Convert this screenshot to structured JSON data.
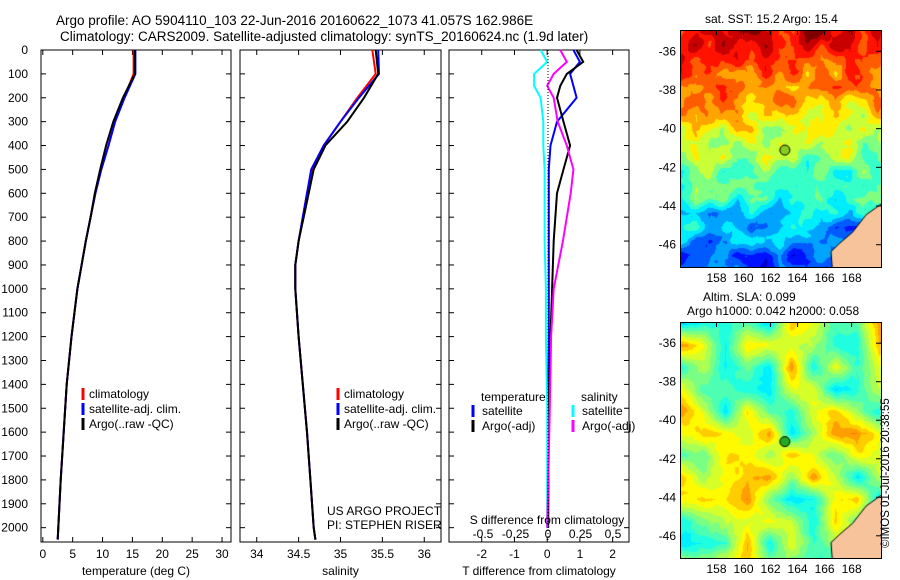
{
  "title": {
    "line1": "Argo profile: AO 5904110_103 22-Jun-2016 20160622_1073 41.057S 162.986E",
    "line2": "Climatology: CARS2009. Satellite-adjusted climatology: synTS_20160624.nc (1.9d later)"
  },
  "colors": {
    "climatology": "#ff0000",
    "satellite": "#0000ff",
    "argo": "#000000",
    "sal_satellite": "#00ffff",
    "sal_argo": "#ff00ff"
  },
  "chart_data": [
    {
      "type": "line",
      "name": "temperature",
      "xlabel": "temperature (deg C)",
      "ylabel": "",
      "xlim": [
        -0.3,
        31.5
      ],
      "ylim": [
        2060,
        0
      ],
      "xticks": [
        "0",
        "5",
        "10",
        "15",
        "20",
        "25",
        "30"
      ],
      "xtickvals": [
        0,
        5,
        10,
        15,
        20,
        25,
        30
      ],
      "yticks": [
        "0",
        "100",
        "200",
        "300",
        "400",
        "500",
        "600",
        "700",
        "800",
        "900",
        "1000",
        "1100",
        "1200",
        "1300",
        "1400",
        "1500",
        "1600",
        "1700",
        "1800",
        "1900",
        "2000"
      ],
      "depth": [
        0,
        100,
        200,
        300,
        400,
        500,
        600,
        700,
        800,
        900,
        1000,
        1200,
        1400,
        1600,
        1800,
        2000,
        2050
      ],
      "series": [
        {
          "name": "climatology",
          "values": [
            15.2,
            15.2,
            13.6,
            12.1,
            11.0,
            9.8,
            8.8,
            8.0,
            7.2,
            6.5,
            5.8,
            4.8,
            4.0,
            3.5,
            3.0,
            2.6,
            2.5
          ]
        },
        {
          "name": "satellite-adj. clim.",
          "values": [
            15.5,
            15.5,
            13.7,
            12.1,
            11.0,
            9.8,
            8.8,
            8.0,
            7.2,
            6.5,
            5.8,
            4.8,
            4.0,
            3.5,
            3.0,
            2.6,
            2.5
          ]
        },
        {
          "name": "Argo(..raw -QC)",
          "values": [
            15.4,
            15.4,
            13.4,
            11.8,
            10.6,
            9.6,
            8.7,
            8.0,
            7.2,
            6.5,
            5.8,
            4.8,
            4.0,
            3.5,
            3.0,
            2.6,
            2.5
          ]
        }
      ],
      "legend": [
        "climatology",
        "satellite-adj. clim.",
        "Argo(..raw -QC)"
      ],
      "legend_position": "bottom-right"
    },
    {
      "type": "line",
      "name": "salinity",
      "xlabel": "salinity",
      "xlim": [
        33.8,
        36.2
      ],
      "ylim": [
        2060,
        0
      ],
      "xticks": [
        "34",
        "34.5",
        "35",
        "35.5",
        "36"
      ],
      "xtickvals": [
        34,
        34.5,
        35,
        35.5,
        36
      ],
      "depth": [
        0,
        100,
        200,
        300,
        400,
        500,
        600,
        700,
        800,
        900,
        1000,
        1200,
        1400,
        1600,
        1800,
        2000,
        2050
      ],
      "series": [
        {
          "name": "climatology",
          "values": [
            35.38,
            35.42,
            35.2,
            35.0,
            34.8,
            34.66,
            34.6,
            34.55,
            34.5,
            34.46,
            34.46,
            34.5,
            34.55,
            34.6,
            34.64,
            34.68,
            34.7
          ]
        },
        {
          "name": "satellite-adj. clim.",
          "values": [
            35.45,
            35.46,
            35.22,
            35.0,
            34.8,
            34.65,
            34.6,
            34.55,
            34.5,
            34.46,
            34.46,
            34.5,
            34.55,
            34.6,
            34.64,
            34.68,
            34.7
          ]
        },
        {
          "name": "Argo(..raw -QC)",
          "values": [
            35.42,
            35.45,
            35.28,
            35.08,
            34.82,
            34.68,
            34.62,
            34.56,
            34.5,
            34.46,
            34.46,
            34.5,
            34.55,
            34.6,
            34.64,
            34.68,
            34.7
          ]
        }
      ],
      "legend": [
        "climatology",
        "satellite-adj. clim.",
        "Argo(..raw -QC)"
      ],
      "annotation": [
        "US ARGO PROJECT",
        "PI: STEPHEN RISER"
      ]
    },
    {
      "type": "line",
      "name": "difference",
      "xlabel": "T difference from climatology",
      "x2label": "S difference from climatology",
      "xlim": [
        -3,
        2.5
      ],
      "ylim": [
        2060,
        0
      ],
      "xticks": [
        "-2",
        "-1",
        "0",
        "1",
        "2"
      ],
      "xtickvals": [
        -2,
        -1,
        0,
        1,
        2
      ],
      "x2ticks": [
        "-0.5",
        "-0.25",
        "0",
        "0.25",
        "0.5"
      ],
      "depth": [
        0,
        50,
        100,
        150,
        200,
        300,
        400,
        500,
        600,
        800,
        1000,
        1200,
        1500,
        2000
      ],
      "series": [
        {
          "name": "T satellite",
          "values": [
            0.8,
            1.0,
            0.7,
            0.8,
            0.9,
            0.3,
            0.1,
            0.05,
            0.05,
            0.05,
            0.05,
            0.05,
            0.03,
            0.02
          ]
        },
        {
          "name": "T Argo(-adj)",
          "values": [
            0.9,
            1.1,
            0.6,
            0.4,
            0.3,
            0.5,
            0.7,
            0.5,
            0.3,
            0.2,
            0.15,
            0.1,
            0.05,
            0.03
          ]
        },
        {
          "name": "S satellite",
          "values": [
            -0.05,
            0.0,
            -0.1,
            -0.1,
            -0.05,
            -0.03,
            -0.03,
            -0.02,
            -0.02,
            -0.02,
            -0.01,
            -0.01,
            0.0,
            0.0
          ]
        },
        {
          "name": "S Argo(-adj)",
          "values": [
            0.1,
            0.15,
            0.05,
            0.0,
            0.05,
            0.08,
            0.15,
            0.2,
            0.18,
            0.12,
            0.05,
            0.03,
            0.02,
            0.0
          ]
        }
      ],
      "legend_titles": [
        "temperature",
        "salinity"
      ],
      "legend": [
        "satellite",
        "Argo(-adj)",
        "satellite",
        "Argo(-adj)"
      ]
    }
  ],
  "map_sst": {
    "title": "sat. SST: 15.2 Argo: 15.4",
    "lat_ticks": [
      "-36",
      "-38",
      "-40",
      "-42",
      "-44",
      "-46"
    ],
    "lon_ticks": [
      "158",
      "160",
      "162",
      "164",
      "166",
      "168"
    ]
  },
  "map_sla": {
    "title1": "Altim. SLA: 0.099",
    "title2": "Argo h1000: 0.042 h2000: 0.058",
    "lat_ticks": [
      "-36",
      "-38",
      "-40",
      "-42",
      "-44",
      "-46"
    ],
    "lon_ticks": [
      "158",
      "160",
      "162",
      "164",
      "166",
      "168"
    ]
  },
  "credit": "©IMOS 01-Jul-2016 20:38:55"
}
